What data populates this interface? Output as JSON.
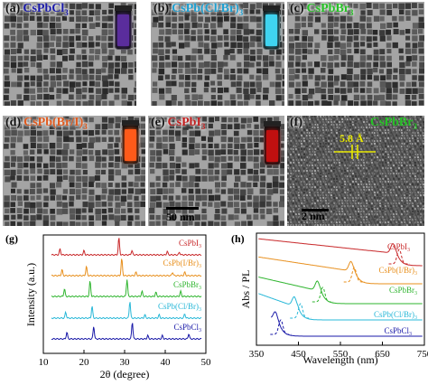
{
  "tem_panels": [
    {
      "letter": "(a)",
      "name": "CsPbCl",
      "sub": "3",
      "name_color": "#1a1aa8",
      "vial_color": "#5a2d9c"
    },
    {
      "letter": "(b)",
      "name": "CsPb(Cl/Br)",
      "sub": "3",
      "name_color": "#1f9fd0",
      "vial_color": "#3fd4f0"
    },
    {
      "letter": "(c)",
      "name": "CsPbBr",
      "sub": "3",
      "name_color": "#26c226",
      "vial_color": "#33dd44"
    },
    {
      "letter": "(d)",
      "name": "CsPb(Br/I)",
      "sub": "3",
      "name_color": "#e05a1e",
      "vial_color": "#ff5a1a"
    },
    {
      "letter": "(e)",
      "name": "CsPbI",
      "sub": "3",
      "name_color": "#c21e1e",
      "vial_color": "#c01010"
    },
    {
      "letter": "(f)",
      "name": "CsPbBr",
      "sub": "3",
      "name_color": "#26c226"
    }
  ],
  "scalebars": {
    "tem": "50 nm",
    "hrtem": "2 nm"
  },
  "lattice_spacing": "5.8 Å",
  "panel_g": {
    "letter": "(g)",
    "xlabel": "2θ (degree)",
    "ylabel": "Intensity (a.u.)",
    "series_labels": [
      {
        "name": "CsPbI",
        "sub": "3",
        "color": "#c8282a"
      },
      {
        "name": "CsPb(I/Br)",
        "sub": "3",
        "color": "#e8901e"
      },
      {
        "name": "CsPbBr",
        "sub": "3",
        "color": "#2fb52f"
      },
      {
        "name": "CsPb(Cl/Br)",
        "sub": "3",
        "color": "#29b8d8"
      },
      {
        "name": "CsPbCl",
        "sub": "3",
        "color": "#1a1aa8"
      }
    ]
  },
  "panel_h": {
    "letter": "(h)",
    "xlabel": "Wavelength  (nm)",
    "ylabel": "Abs / PL",
    "series_labels": [
      {
        "name": "CsPbI",
        "sub": "3",
        "color": "#c8282a"
      },
      {
        "name": "CsPb(I/Br)",
        "sub": "3",
        "color": "#e8901e"
      },
      {
        "name": "CsPbBr",
        "sub": "3",
        "color": "#2fb52f"
      },
      {
        "name": "CsPb(Cl/Br)",
        "sub": "3",
        "color": "#29b8d8"
      },
      {
        "name": "CsPbCl",
        "sub": "3",
        "color": "#1a1aa8"
      }
    ]
  },
  "chart_data": [
    {
      "type": "line",
      "xlabel": "2θ (degree)",
      "ylabel": "Intensity (a.u.)",
      "xlim": [
        10,
        50
      ],
      "x_ticks": [
        10,
        20,
        30,
        40,
        50
      ],
      "series": [
        {
          "name": "CsPbI3",
          "color": "#c8282a",
          "peaks": [
            [
              14.1,
              0.35
            ],
            [
              20.0,
              0.25
            ],
            [
              28.6,
              1.0
            ],
            [
              31.8,
              0.25
            ],
            [
              40.5,
              0.2
            ],
            [
              43.5,
              0.15
            ]
          ]
        },
        {
          "name": "CsPb(I/Br)3",
          "color": "#e8901e",
          "peaks": [
            [
              14.6,
              0.35
            ],
            [
              20.6,
              0.55
            ],
            [
              29.3,
              1.0
            ],
            [
              32.8,
              0.2
            ],
            [
              41.8,
              0.2
            ],
            [
              44.8,
              0.2
            ]
          ]
        },
        {
          "name": "CsPbBr3",
          "color": "#2fb52f",
          "peaks": [
            [
              15.2,
              0.45
            ],
            [
              21.5,
              0.9
            ],
            [
              30.6,
              1.0
            ],
            [
              34.3,
              0.3
            ],
            [
              37.7,
              0.25
            ],
            [
              43.8,
              0.3
            ]
          ]
        },
        {
          "name": "CsPb(Cl/Br)3",
          "color": "#29b8d8",
          "peaks": [
            [
              15.5,
              0.35
            ],
            [
              22.0,
              0.7
            ],
            [
              31.3,
              1.0
            ],
            [
              35.0,
              0.2
            ],
            [
              38.5,
              0.2
            ],
            [
              44.8,
              0.25
            ]
          ]
        },
        {
          "name": "CsPbCl3",
          "color": "#1a1aa8",
          "peaks": [
            [
              15.8,
              0.4
            ],
            [
              22.4,
              0.75
            ],
            [
              31.9,
              1.0
            ],
            [
              35.7,
              0.2
            ],
            [
              39.3,
              0.2
            ],
            [
              45.8,
              0.3
            ]
          ]
        }
      ]
    },
    {
      "type": "line",
      "xlabel": "Wavelength  (nm)",
      "ylabel": "Abs / PL",
      "xlim": [
        350,
        750
      ],
      "x_ticks": [
        350,
        450,
        550,
        650,
        750
      ],
      "series": [
        {
          "name": "CsPbI3",
          "color": "#c8282a",
          "abs_edge": 685,
          "pl_peak": 690
        },
        {
          "name": "CsPb(I/Br)3",
          "color": "#e8901e",
          "abs_edge": 585,
          "pl_peak": 583
        },
        {
          "name": "CsPbBr3",
          "color": "#2fb52f",
          "abs_edge": 505,
          "pl_peak": 508
        },
        {
          "name": "CsPb(Cl/Br)3",
          "color": "#29b8d8",
          "abs_edge": 450,
          "pl_peak": 455
        },
        {
          "name": "CsPbCl3",
          "color": "#1a1aa8",
          "abs_edge": 405,
          "pl_peak": 408
        }
      ]
    }
  ]
}
